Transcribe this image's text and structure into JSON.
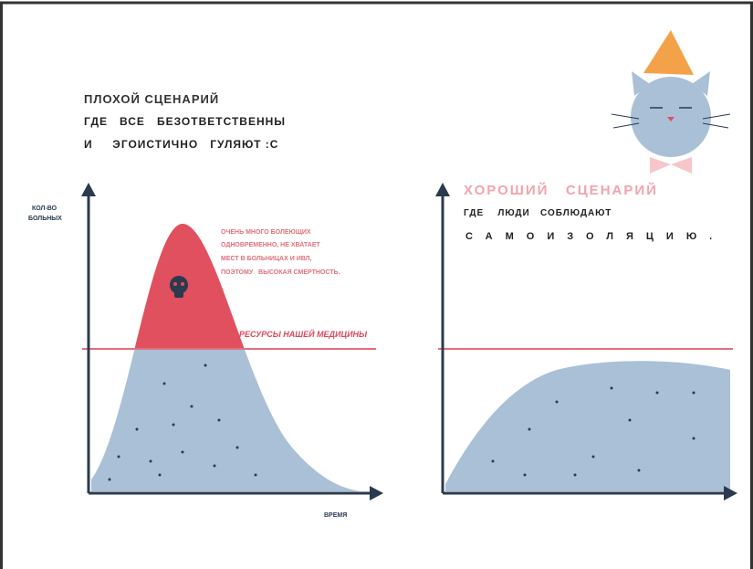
{
  "left": {
    "title": "ПЛОХОЙ СЦЕНАРИЙ",
    "subtitle_lines": [
      "ГДЕ   ВСЕ   БЕЗОТВЕТСТВЕННЫ",
      "И     ЭГОИСТИЧНО   ГУЛЯЮТ :С"
    ],
    "y_axis_label_lines": [
      "КОЛ-ВО",
      "БОЛЬНЫХ"
    ],
    "annotation_lines": [
      "ОЧЕНЬ МНОГО БОЛЕЮЩИХ",
      "ОДНОВРЕМЕННО, НЕ ХВАТАЕТ",
      "МЕСТ В БОЛЬНИЦАХ И ИВЛ,",
      "ПОЭТОМУ   ВЫСОКАЯ СМЕРТНОСТЬ."
    ],
    "threshold_label": "РЕСУРСЫ НАШЕЙ МЕДИЦИНЫ",
    "x_axis_label": "ВРЕМЯ"
  },
  "right": {
    "title": "ХОРОШИЙ   СЦЕНАРИЙ",
    "subtitle_lines": [
      "ГДЕ    ЛЮДИ   СОБЛЮДАЮТ",
      "САМОИЗОЛЯЦИЮ."
    ]
  }
}
